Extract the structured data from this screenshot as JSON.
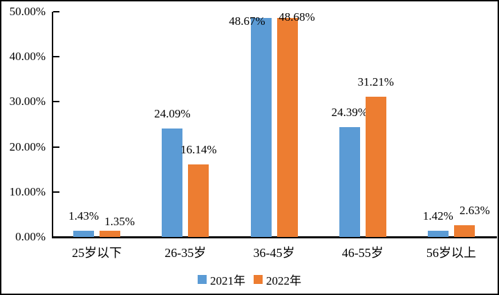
{
  "chart_data": {
    "type": "bar",
    "title": "",
    "xlabel": "",
    "ylabel": "",
    "categories": [
      "25岁以下",
      "26-35岁",
      "36-45岁",
      "46-55岁",
      "56岁以上"
    ],
    "series": [
      {
        "name": "2021年",
        "color": "#5B9BD5",
        "values": [
          1.43,
          24.09,
          48.67,
          24.39,
          1.42
        ],
        "labels": [
          "1.43%",
          "24.09%",
          "48.67%",
          "24.39%",
          "1.42%"
        ]
      },
      {
        "name": "2022年",
        "color": "#ED7D31",
        "values": [
          1.35,
          16.14,
          48.68,
          31.21,
          2.63
        ],
        "labels": [
          "1.35%",
          "16.14%",
          "48.68%",
          "31.21%",
          "2.63%"
        ]
      }
    ],
    "y_ticks": [
      "0.00%",
      "10.00%",
      "20.00%",
      "30.00%",
      "40.00%",
      "50.00%"
    ],
    "ylim": [
      0,
      50
    ],
    "grid": false,
    "legend_position": "bottom-center",
    "axis_color": "#000000",
    "background_color": "#FFFFFF"
  }
}
